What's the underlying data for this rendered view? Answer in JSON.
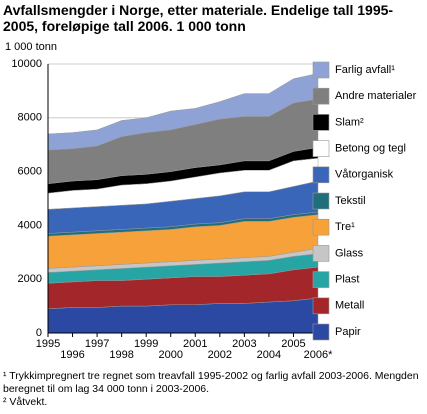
{
  "chart_data": {
    "type": "stacked-area",
    "title": "Avfallsmengder i Norge, etter materiale. Endelige tall 1995-2005, foreløpige tall 2006. 1 000 tonn",
    "y_label": "1 000 tonn",
    "categories": [
      "1995",
      "1996",
      "1997",
      "1998",
      "1999",
      "2000",
      "2001",
      "2002",
      "2003",
      "2004",
      "2005",
      "2006*"
    ],
    "ylim": [
      0,
      10000
    ],
    "yticks": [
      0,
      2000,
      4000,
      6000,
      8000,
      10000
    ],
    "grid": true,
    "legend": "right",
    "series": [
      {
        "name": "Papir",
        "color": "#2b48a3",
        "values": [
          900,
          950,
          950,
          1000,
          1000,
          1050,
          1050,
          1100,
          1100,
          1150,
          1200,
          1300
        ]
      },
      {
        "name": "Metall",
        "color": "#a3262b",
        "values": [
          950,
          950,
          1000,
          950,
          1000,
          1000,
          1050,
          1000,
          1050,
          1050,
          1150,
          1150
        ]
      },
      {
        "name": "Plast",
        "color": "#27a5a4",
        "values": [
          400,
          400,
          400,
          450,
          450,
          450,
          450,
          500,
          500,
          500,
          500,
          500
        ]
      },
      {
        "name": "Glass",
        "color": "#c6c6c6",
        "values": [
          150,
          150,
          150,
          150,
          150,
          150,
          150,
          150,
          150,
          150,
          150,
          200
        ]
      },
      {
        "name": "Tre¹",
        "color": "#f7a13a",
        "values": [
          1200,
          1200,
          1200,
          1200,
          1200,
          1200,
          1250,
          1250,
          1350,
          1300,
          1300,
          1250
        ]
      },
      {
        "name": "Tekstil",
        "color": "#1f6e7a",
        "values": [
          100,
          100,
          100,
          100,
          100,
          100,
          100,
          100,
          100,
          100,
          100,
          100
        ]
      },
      {
        "name": "Våtorganisk",
        "color": "#3a66b9",
        "values": [
          900,
          900,
          900,
          900,
          900,
          950,
          950,
          1000,
          1000,
          1000,
          1050,
          1150
        ]
      },
      {
        "name": "Betong og tegl",
        "color": "#ffffff",
        "values": [
          600,
          650,
          650,
          750,
          750,
          750,
          800,
          850,
          800,
          800,
          950,
          850
        ]
      },
      {
        "name": "Slam²",
        "color": "#000000",
        "values": [
          350,
          350,
          350,
          350,
          350,
          350,
          350,
          300,
          350,
          350,
          350,
          400
        ]
      },
      {
        "name": "Andre materialer",
        "color": "#7f7f7f",
        "values": [
          1250,
          1200,
          1250,
          1450,
          1550,
          1550,
          1600,
          1700,
          1650,
          1650,
          1800,
          1800
        ]
      },
      {
        "name": "Farlig avfall¹",
        "color": "#8fa2d5",
        "values": [
          600,
          600,
          600,
          600,
          550,
          700,
          600,
          650,
          850,
          850,
          900,
          950
        ]
      }
    ],
    "footnotes": [
      "¹ Trykkimpregnert tre regnet som treavfall 1995-2002 og farlig avfall 2003-2006. Mengden beregnet til om lag 34 000 tonn i 2003-2006.",
      "² Våtvekt."
    ]
  }
}
